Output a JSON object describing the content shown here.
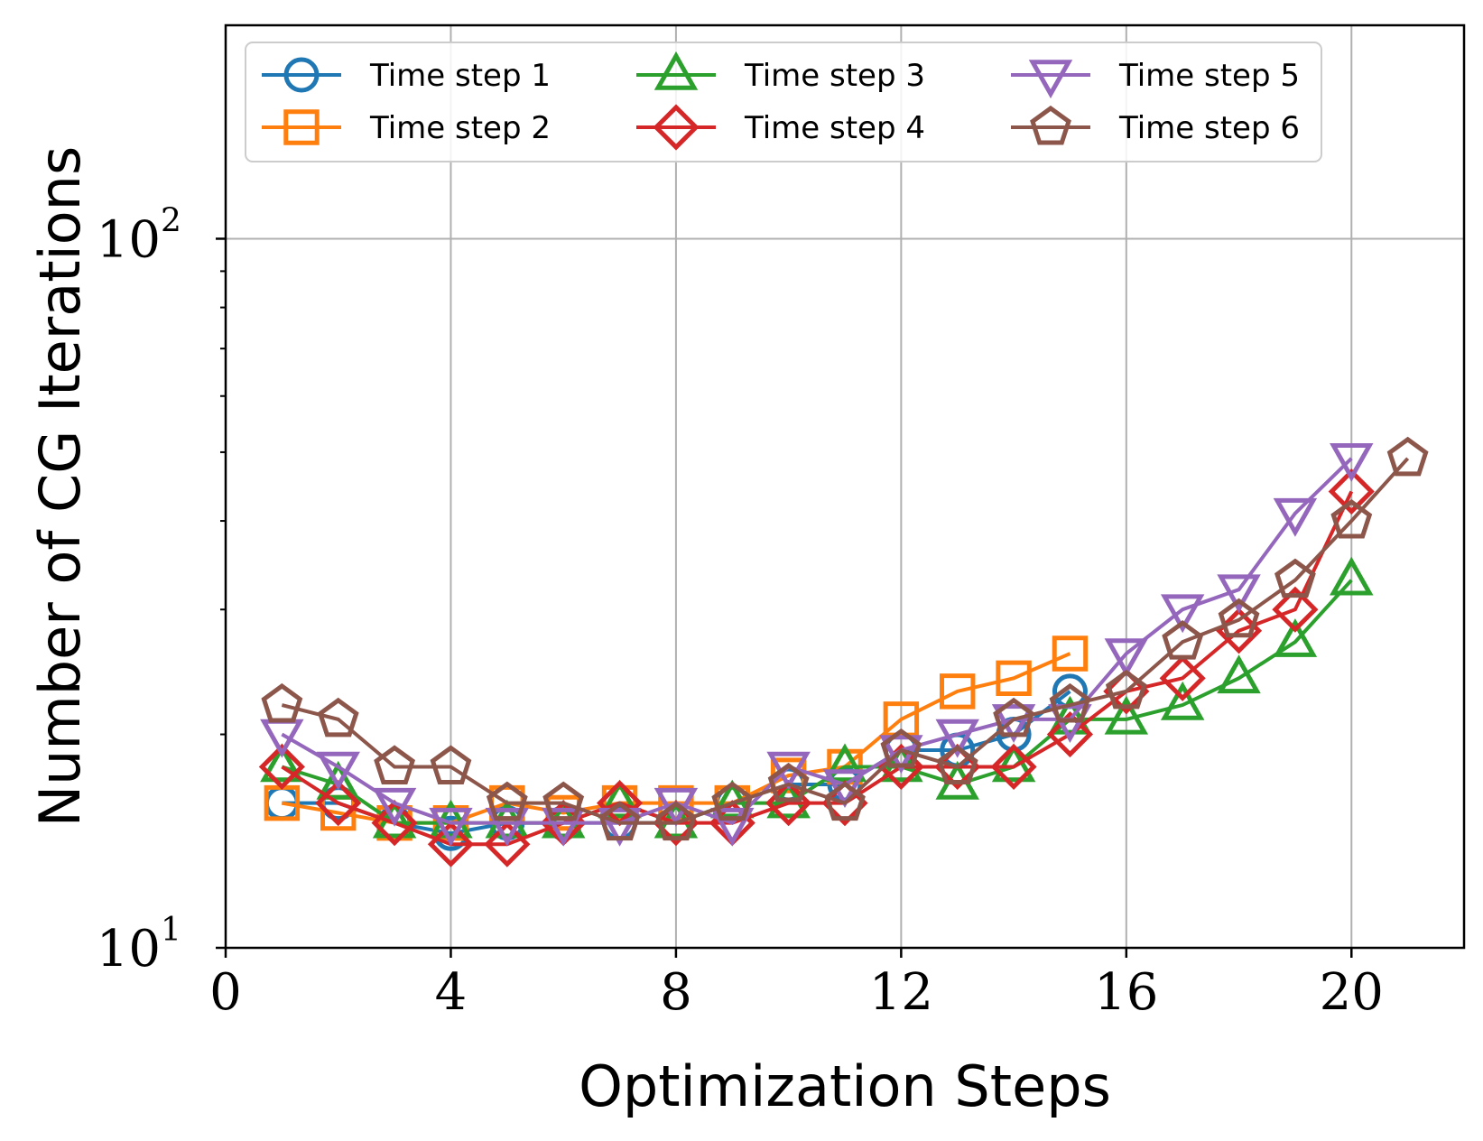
{
  "chart_data": {
    "type": "line",
    "title": "",
    "xlabel": "Optimization Steps",
    "ylabel": "Number of CG Iterations",
    "xlim": [
      0,
      22
    ],
    "ylim": [
      10,
      200
    ],
    "yscale": "log",
    "grid": true,
    "legend_position": "top",
    "x_ticks": [
      {
        "value": 0,
        "label": "0"
      },
      {
        "value": 4,
        "label": "4"
      },
      {
        "value": 8,
        "label": "8"
      },
      {
        "value": 12,
        "label": "12"
      },
      {
        "value": 16,
        "label": "16"
      },
      {
        "value": 20,
        "label": "20"
      }
    ],
    "y_ticks": [
      {
        "value": 10,
        "base": "10",
        "exp": "1"
      },
      {
        "value": 100,
        "base": "10",
        "exp": "2"
      }
    ],
    "series": [
      {
        "name": "Time step 1",
        "color": "#1f77b4",
        "marker": "circle",
        "x": [
          1,
          2,
          3,
          4,
          5,
          6,
          7,
          8,
          9,
          10,
          11,
          12,
          13,
          14,
          15
        ],
        "y": [
          16,
          16,
          15,
          14.5,
          15,
          15,
          15,
          15,
          16,
          17,
          17,
          19,
          19,
          20,
          23
        ]
      },
      {
        "name": "Time step 2",
        "color": "#ff7f0e",
        "marker": "square",
        "x": [
          1,
          2,
          3,
          4,
          5,
          6,
          7,
          8,
          9,
          10,
          11,
          12,
          13,
          14,
          15
        ],
        "y": [
          16,
          15.5,
          15,
          15,
          16,
          15.5,
          16,
          16,
          16,
          17.5,
          18,
          21,
          23,
          24,
          26
        ]
      },
      {
        "name": "Time step 3",
        "color": "#2ca02c",
        "marker": "triangle-up",
        "x": [
          1,
          2,
          3,
          4,
          5,
          6,
          7,
          8,
          9,
          10,
          11,
          12,
          13,
          14,
          15,
          16,
          17,
          18,
          19,
          20
        ],
        "y": [
          18,
          17,
          15,
          15,
          15,
          15,
          16,
          15,
          16,
          16,
          18,
          18,
          17,
          18,
          21,
          21,
          22,
          24,
          27,
          33
        ]
      },
      {
        "name": "Time step 4",
        "color": "#d62728",
        "marker": "diamond",
        "x": [
          1,
          2,
          3,
          4,
          5,
          6,
          7,
          8,
          9,
          10,
          11,
          12,
          13,
          14,
          15,
          16,
          17,
          18,
          19,
          20
        ],
        "y": [
          18,
          16,
          15,
          14,
          14,
          15,
          16,
          15,
          15,
          16,
          16,
          18,
          18,
          18,
          20,
          23,
          24,
          28,
          30,
          44
        ]
      },
      {
        "name": "Time step 5",
        "color": "#9467bd",
        "marker": "triangle-down",
        "x": [
          1,
          2,
          3,
          4,
          5,
          6,
          7,
          8,
          9,
          10,
          11,
          12,
          13,
          14,
          15,
          16,
          17,
          18,
          19,
          20
        ],
        "y": [
          20,
          18,
          16,
          15,
          15,
          15,
          15,
          16,
          15,
          18,
          17,
          19,
          20,
          21,
          21,
          26,
          30,
          32,
          41,
          49
        ]
      },
      {
        "name": "Time step 6",
        "color": "#8c564b",
        "marker": "pentagon",
        "x": [
          1,
          2,
          3,
          4,
          5,
          6,
          7,
          8,
          9,
          10,
          11,
          12,
          13,
          14,
          15,
          16,
          17,
          18,
          19,
          20,
          21
        ],
        "y": [
          22,
          21,
          18,
          18,
          16,
          16,
          15,
          15,
          16,
          17,
          16,
          19,
          18,
          21,
          22,
          23,
          27,
          29,
          33,
          40,
          49
        ]
      }
    ]
  }
}
